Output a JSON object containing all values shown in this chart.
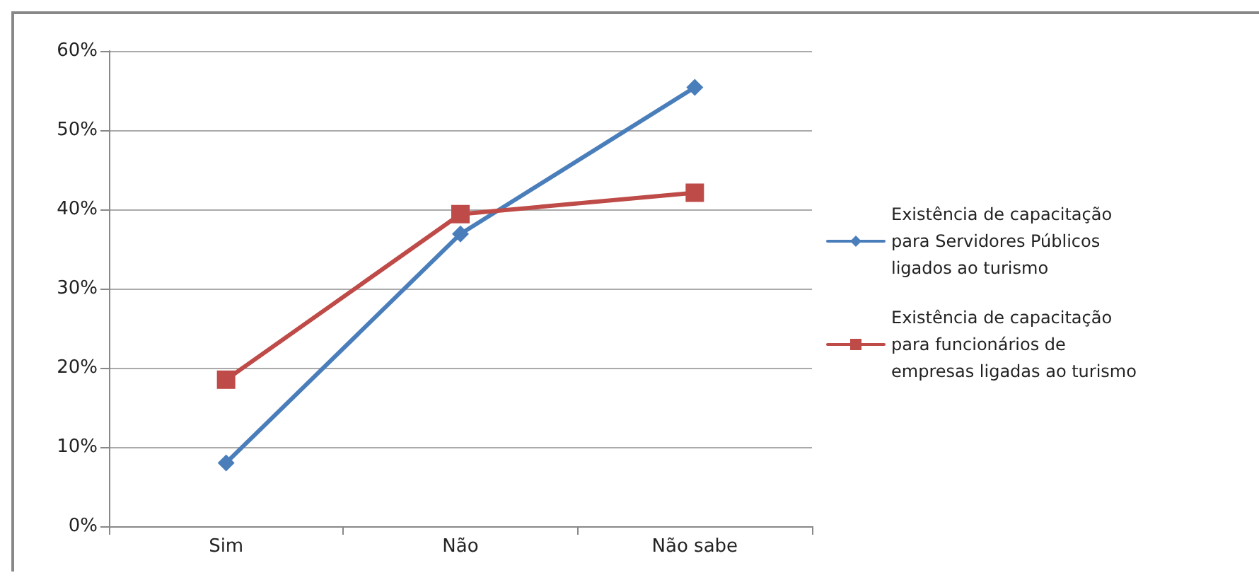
{
  "chart_data": {
    "type": "line",
    "categories": [
      "Sim",
      "Não",
      "Não sabe"
    ],
    "series": [
      {
        "name": "Existência de capacitação para Servidores Públicos ligados ao turismo",
        "color": "#4a7ebb",
        "marker": "diamond",
        "values": [
          8.0,
          36.9,
          55.4
        ]
      },
      {
        "name": "Existência de capacitação para funcionários de empresas ligadas ao turismo",
        "color": "#be4b48",
        "marker": "square",
        "values": [
          18.5,
          39.4,
          42.1
        ]
      }
    ],
    "ylim": [
      0,
      60
    ],
    "yticks": [
      {
        "value": 0,
        "label": "0%"
      },
      {
        "value": 10,
        "label": "10%"
      },
      {
        "value": 20,
        "label": "20%"
      },
      {
        "value": 30,
        "label": "30%"
      },
      {
        "value": 40,
        "label": "40%"
      },
      {
        "value": 50,
        "label": "50%"
      },
      {
        "value": 60,
        "label": "60%"
      }
    ],
    "grid": "y",
    "legend": "right",
    "line_style": "solid"
  }
}
